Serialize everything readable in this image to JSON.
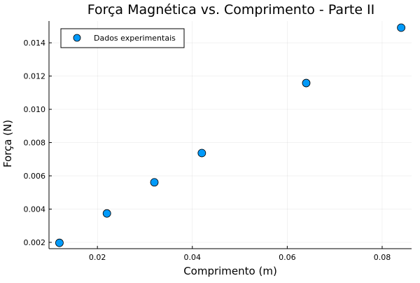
{
  "chart_data": {
    "type": "scatter",
    "title": "Força Magnética vs. Comprimento - Parte II",
    "xlabel": "Comprimento (m)",
    "ylabel": "Força (N)",
    "xlim": [
      0.0098,
      0.0862
    ],
    "ylim": [
      0.00162,
      0.01531
    ],
    "xticks": [
      0.02,
      0.04,
      0.06,
      0.08
    ],
    "xtick_labels": [
      "0.02",
      "0.04",
      "0.06",
      "0.08"
    ],
    "yticks": [
      0.002,
      0.004,
      0.006,
      0.008,
      0.01,
      0.012,
      0.014
    ],
    "ytick_labels": [
      "0.002",
      "0.004",
      "0.006",
      "0.008",
      "0.010",
      "0.012",
      "0.014"
    ],
    "grid": true,
    "legend_position": "top-left",
    "series": [
      {
        "name": "Dados experimentais",
        "color": "#009AFA",
        "x": [
          0.012,
          0.022,
          0.032,
          0.042,
          0.064,
          0.084
        ],
        "y": [
          0.00197,
          0.00374,
          0.00561,
          0.00737,
          0.01158,
          0.01491
        ]
      }
    ]
  }
}
